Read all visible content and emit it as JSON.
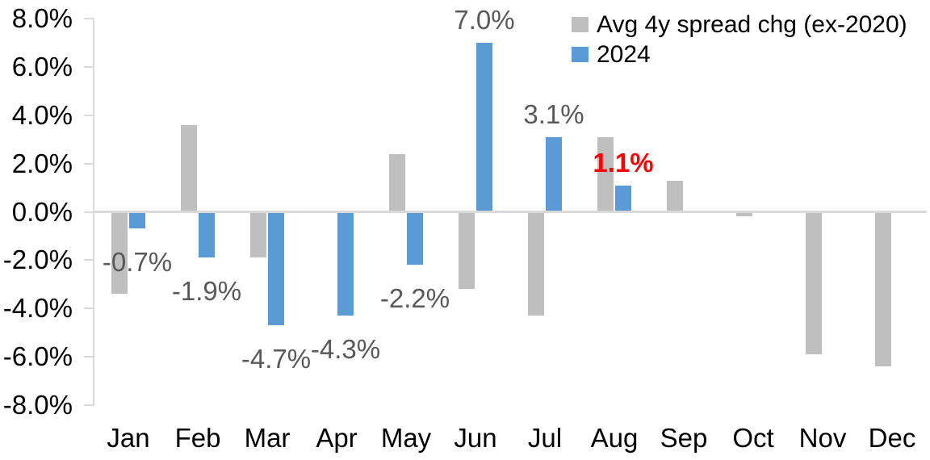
{
  "chart_data": {
    "type": "bar",
    "title": "",
    "categories": [
      "Jan",
      "Feb",
      "Mar",
      "Apr",
      "May",
      "Jun",
      "Jul",
      "Aug",
      "Sep",
      "Oct",
      "Nov",
      "Dec"
    ],
    "series": [
      {
        "name": "Avg 4y spread chg (ex-2020)",
        "color": "#BFBFBF",
        "values": [
          -3.4,
          3.6,
          -1.9,
          0.0,
          2.4,
          -3.2,
          -4.3,
          3.1,
          1.3,
          -0.2,
          -5.9,
          -6.4
        ]
      },
      {
        "name": "2024",
        "color": "#5B9BD5",
        "values": [
          -0.7,
          -1.9,
          -4.7,
          -4.3,
          -2.2,
          7.0,
          3.1,
          1.1,
          null,
          null,
          null,
          null
        ]
      }
    ],
    "data_labels": [
      {
        "month": "Jan",
        "series": "2024",
        "text": "-0.7%",
        "color": "#595959",
        "bold": false
      },
      {
        "month": "Feb",
        "series": "2024",
        "text": "-1.9%",
        "color": "#595959",
        "bold": false
      },
      {
        "month": "Mar",
        "series": "2024",
        "text": "-4.7%",
        "color": "#595959",
        "bold": false
      },
      {
        "month": "Apr",
        "series": "2024",
        "text": "-4.3%",
        "color": "#595959",
        "bold": false
      },
      {
        "month": "May",
        "series": "2024",
        "text": "-2.2%",
        "color": "#595959",
        "bold": false
      },
      {
        "month": "Jun",
        "series": "2024",
        "text": "7.0%",
        "color": "#595959",
        "bold": false
      },
      {
        "month": "Jul",
        "series": "2024",
        "text": "3.1%",
        "color": "#595959",
        "bold": false
      },
      {
        "month": "Aug",
        "series": "2024",
        "text": "1.1%",
        "color": "#FF0000",
        "bold": true
      }
    ],
    "y_axis": {
      "ticks": [
        "8.0%",
        "6.0%",
        "4.0%",
        "2.0%",
        "0.0%",
        "-2.0%",
        "-4.0%",
        "-6.0%",
        "-8.0%"
      ],
      "tick_values": [
        8,
        6,
        4,
        2,
        0,
        -2,
        -4,
        -6,
        -8
      ],
      "min": -8,
      "max": 8
    },
    "xlabel": "",
    "ylabel": "",
    "grid": false,
    "legend": {
      "position": "top-right",
      "entries": [
        {
          "label": "Avg 4y spread chg (ex-2020)",
          "color": "#BFBFBF"
        },
        {
          "label": "2024",
          "color": "#5B9BD5"
        }
      ]
    },
    "colors": {
      "axis_line": "#D9D9D9",
      "axis_text": "#000000",
      "data_label_default": "#595959",
      "data_label_highlight": "#FF0000",
      "background": "#FFFFFF"
    }
  }
}
